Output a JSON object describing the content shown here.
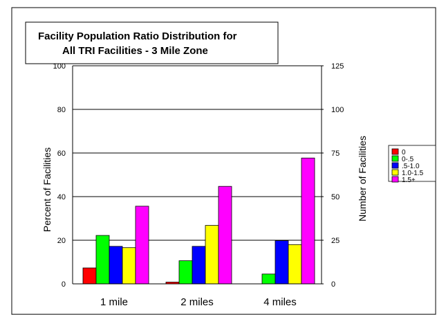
{
  "chart_data": {
    "type": "bar",
    "title": [
      "Facility Population Ratio Distribution for",
      "All TRI Facilities - 3 Mile Zone"
    ],
    "ylabel": "Percent of Facilities",
    "y2label": "Number of Facilities",
    "categories": [
      "1 mile",
      "2 miles",
      "4 miles"
    ],
    "ylim": [
      0,
      100
    ],
    "yticks": [
      0,
      20,
      40,
      60,
      80,
      100
    ],
    "y2lim": [
      0,
      125
    ],
    "y2ticks": [
      0,
      25,
      50,
      75,
      100,
      125
    ],
    "grid": true,
    "legend_position": "right",
    "series": [
      {
        "name": "0",
        "color": "#ff0000",
        "values": [
          7.3,
          0.8,
          0
        ]
      },
      {
        "name": "0-.5",
        "color": "#00ff00",
        "values": [
          22.2,
          10.6,
          4.5
        ]
      },
      {
        "name": ".5-1.0",
        "color": "#0000ff",
        "values": [
          17.2,
          17.2,
          19.8
        ]
      },
      {
        "name": "1.0-1.5",
        "color": "#ffff00",
        "values": [
          16.6,
          26.8,
          18
        ]
      },
      {
        "name": "1.5+",
        "color": "#ff00ff",
        "values": [
          35.6,
          44.7,
          57.7
        ]
      }
    ]
  }
}
